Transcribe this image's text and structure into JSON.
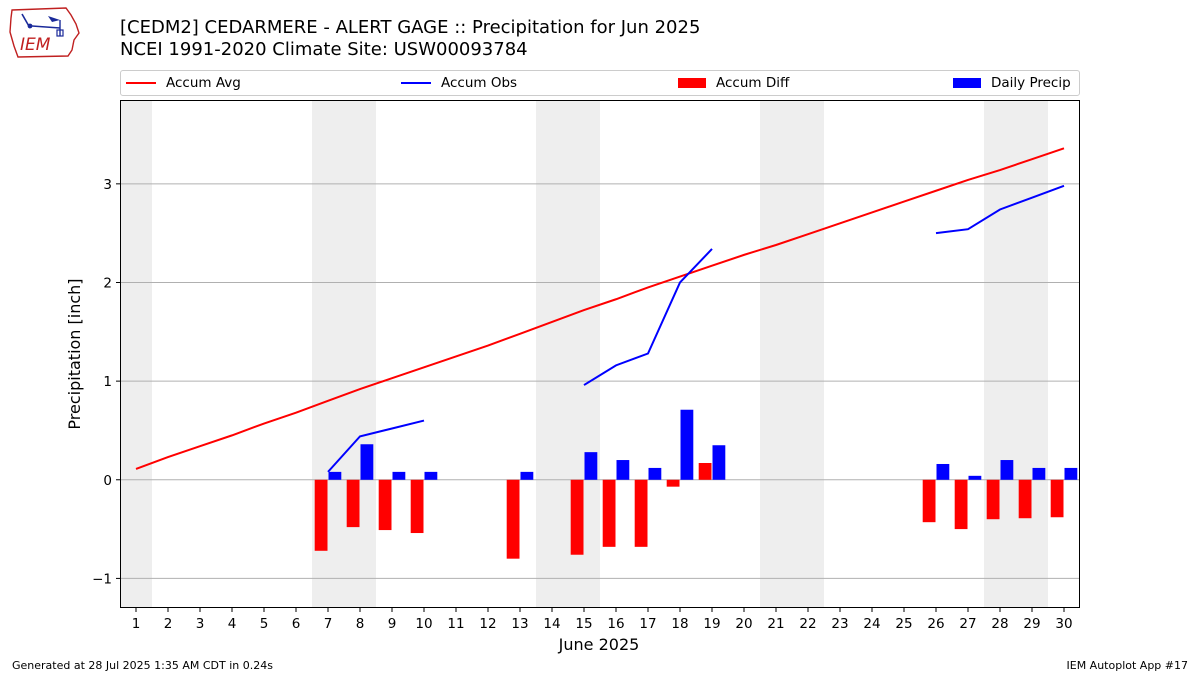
{
  "logo_text": "IEM",
  "title_line1": "[CEDM2] CEDARMERE - ALERT GAGE :: Precipitation for Jun 2025",
  "title_line2": "NCEI 1991-2020 Climate Site: USW00093784",
  "legend": [
    {
      "label": "Accum Avg",
      "color": "#ff0000",
      "kind": "line"
    },
    {
      "label": "Accum Obs",
      "color": "#0000ff",
      "kind": "line"
    },
    {
      "label": "Accum Diff",
      "color": "#ff0000",
      "kind": "box"
    },
    {
      "label": "Daily Precip",
      "color": "#0000ff",
      "kind": "box"
    }
  ],
  "footer_left": "Generated at 28 Jul 2025 1:35 AM CDT in 0.24s",
  "footer_right": "IEM Autoplot App #17",
  "chart_data": {
    "type": "bar",
    "xlabel": "June 2025",
    "ylabel": "Precipitation [inch]",
    "x": [
      1,
      2,
      3,
      4,
      5,
      6,
      7,
      8,
      9,
      10,
      11,
      12,
      13,
      14,
      15,
      16,
      17,
      18,
      19,
      20,
      21,
      22,
      23,
      24,
      25,
      26,
      27,
      28,
      29,
      30
    ],
    "xlim": [
      0.5,
      30.5
    ],
    "ylim": [
      -1.3,
      3.85
    ],
    "yticks": [
      -1,
      0,
      1,
      2,
      3
    ],
    "ytick_labels": [
      "−1",
      "0",
      "1",
      "2",
      "3"
    ],
    "grid": "horizontal",
    "weekend_shading": [
      [
        0.5,
        1.5
      ],
      [
        6.5,
        8.5
      ],
      [
        13.5,
        15.5
      ],
      [
        20.5,
        22.5
      ],
      [
        27.5,
        29.5
      ]
    ],
    "series": [
      {
        "name": "Accum Avg",
        "type": "line",
        "color": "#ff0000",
        "values": [
          0.11,
          0.23,
          0.34,
          0.45,
          0.57,
          0.68,
          0.8,
          0.92,
          1.03,
          1.14,
          1.25,
          1.36,
          1.48,
          1.6,
          1.72,
          1.83,
          1.95,
          2.06,
          2.17,
          2.28,
          2.38,
          2.49,
          2.6,
          2.71,
          2.82,
          2.93,
          3.04,
          3.14,
          3.25,
          3.36
        ]
      },
      {
        "name": "Accum Obs",
        "type": "line",
        "color": "#0000ff",
        "segments": [
          {
            "x": [
              7,
              8,
              9,
              10
            ],
            "y": [
              0.08,
              0.44,
              0.52,
              0.6
            ]
          },
          {
            "x": [
              15,
              16,
              17,
              18,
              19
            ],
            "y": [
              0.96,
              1.16,
              1.28,
              2.0,
              2.34
            ]
          },
          {
            "x": [
              26,
              27,
              28,
              29,
              30
            ],
            "y": [
              2.5,
              2.54,
              2.74,
              2.86,
              2.98
            ]
          }
        ]
      },
      {
        "name": "Accum Diff",
        "type": "bar",
        "color": "#ff0000",
        "offset": "left",
        "points": [
          [
            7,
            -0.72
          ],
          [
            8,
            -0.48
          ],
          [
            9,
            -0.51
          ],
          [
            10,
            -0.54
          ],
          [
            13,
            -0.8
          ],
          [
            15,
            -0.76
          ],
          [
            16,
            -0.68
          ],
          [
            17,
            -0.68
          ],
          [
            18,
            -0.07
          ],
          [
            19,
            0.17
          ],
          [
            26,
            -0.43
          ],
          [
            27,
            -0.5
          ],
          [
            28,
            -0.4
          ],
          [
            29,
            -0.39
          ],
          [
            30,
            -0.38
          ]
        ]
      },
      {
        "name": "Daily Precip",
        "type": "bar",
        "color": "#0000ff",
        "offset": "right",
        "points": [
          [
            7,
            0.08
          ],
          [
            8,
            0.36
          ],
          [
            9,
            0.08
          ],
          [
            10,
            0.08
          ],
          [
            13,
            0.08
          ],
          [
            15,
            0.28
          ],
          [
            16,
            0.2
          ],
          [
            17,
            0.12
          ],
          [
            18,
            0.71
          ],
          [
            19,
            0.35
          ],
          [
            26,
            0.16
          ],
          [
            27,
            0.04
          ],
          [
            28,
            0.2
          ],
          [
            29,
            0.12
          ],
          [
            30,
            0.12
          ]
        ]
      }
    ]
  }
}
